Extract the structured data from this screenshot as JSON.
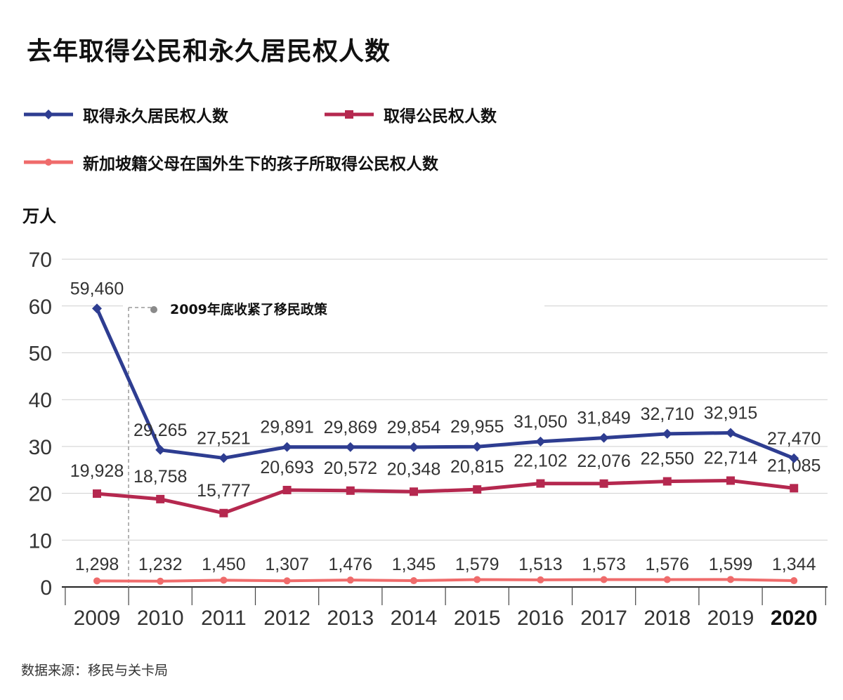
{
  "title": "去年取得公民和永久居民权人数",
  "unit": "万人",
  "source": "数据来源：移民与关卡局",
  "annotation": "2009年底收紧了移民政策",
  "chart_data": {
    "type": "line",
    "categories": [
      "2009",
      "2010",
      "2011",
      "2012",
      "2013",
      "2014",
      "2015",
      "2016",
      "2017",
      "2018",
      "2019",
      "2020"
    ],
    "ylim": [
      0,
      70
    ],
    "yticks": [
      "0",
      "10",
      "20",
      "30",
      "40",
      "50",
      "60",
      "70"
    ],
    "grid": "horizontal",
    "legend_position": "top",
    "highlight_category": "2020",
    "series": [
      {
        "name": "取得永久居民权人数",
        "color": "#2e3d91",
        "marker": "diamond",
        "values": [
          59460,
          29265,
          27521,
          29891,
          29869,
          29854,
          29955,
          31050,
          31849,
          32710,
          32915,
          27470
        ],
        "labels": [
          "59,460",
          "29,265",
          "27,521",
          "29,891",
          "29,869",
          "29,854",
          "29,955",
          "31,050",
          "31,849",
          "32,710",
          "32,915",
          "27,470"
        ]
      },
      {
        "name": "取得公民权人数",
        "color": "#b5284f",
        "marker": "square",
        "values": [
          19928,
          18758,
          15777,
          20693,
          20572,
          20348,
          20815,
          22102,
          22076,
          22550,
          22714,
          21085
        ],
        "labels": [
          "19,928",
          "18,758",
          "15,777",
          "20,693",
          "20,572",
          "20,348",
          "20,815",
          "22,102",
          "22,076",
          "22,550",
          "22,714",
          "21,085"
        ]
      },
      {
        "name": "新加坡籍父母在国外生下的孩子所取得公民权人数",
        "color": "#ef6b6b",
        "marker": "circle",
        "values": [
          1298,
          1232,
          1450,
          1307,
          1476,
          1345,
          1579,
          1513,
          1573,
          1576,
          1599,
          1344
        ],
        "labels": [
          "1,298",
          "1,232",
          "1,450",
          "1,307",
          "1,476",
          "1,345",
          "1,579",
          "1,513",
          "1,573",
          "1,576",
          "1,599",
          "1,344"
        ]
      }
    ]
  }
}
